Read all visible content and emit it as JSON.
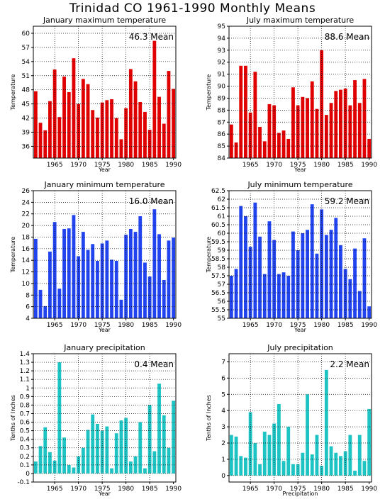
{
  "page_title": "Trinidad CO  1961-1990 Monthly Means",
  "chart_data": [
    {
      "type": "bar",
      "title": "January maximum temperature",
      "xlabel": "Year",
      "ylabel": "Temperature",
      "mean_label": "46.3 Mean",
      "color": "#e00000",
      "ylim": [
        33.5,
        61.5
      ],
      "yticks": [
        36,
        39,
        42,
        45,
        48,
        51,
        54,
        57,
        60
      ],
      "xticks": [
        1965,
        1970,
        1975,
        1980,
        1985,
        1990
      ],
      "x": [
        1961,
        1962,
        1963,
        1964,
        1965,
        1966,
        1967,
        1968,
        1969,
        1970,
        1971,
        1972,
        1973,
        1974,
        1975,
        1976,
        1977,
        1978,
        1979,
        1980,
        1981,
        1982,
        1983,
        1984,
        1985,
        1986,
        1987,
        1988,
        1989,
        1990
      ],
      "values": [
        47.7,
        41.0,
        39.4,
        45.6,
        52.3,
        42.2,
        50.8,
        47.5,
        54.7,
        45.0,
        50.3,
        49.2,
        43.7,
        42.1,
        45.3,
        45.8,
        46.0,
        42.0,
        37.5,
        44.1,
        52.4,
        49.8,
        45.4,
        43.3,
        39.5,
        58.4,
        46.5,
        40.8,
        52.0,
        48.2
      ],
      "grid": true
    },
    {
      "type": "bar",
      "title": "July maximum temperature",
      "xlabel": "Year",
      "ylabel": "Temperature",
      "mean_label": "88.6 Mean",
      "color": "#e00000",
      "ylim": [
        84,
        95
      ],
      "yticks": [
        84,
        85,
        86,
        87,
        88,
        89,
        90,
        91,
        92,
        93,
        94,
        95
      ],
      "xticks": [
        1965,
        1970,
        1975,
        1980,
        1985,
        1990
      ],
      "x": [
        1961,
        1962,
        1963,
        1964,
        1965,
        1966,
        1967,
        1968,
        1969,
        1970,
        1971,
        1972,
        1973,
        1974,
        1975,
        1976,
        1977,
        1978,
        1979,
        1980,
        1981,
        1982,
        1983,
        1984,
        1985,
        1986,
        1987,
        1988,
        1989,
        1990
      ],
      "values": [
        86.8,
        85.3,
        91.7,
        91.7,
        87.8,
        91.2,
        86.6,
        85.4,
        88.5,
        88.4,
        86.1,
        86.3,
        85.6,
        89.9,
        88.4,
        89.1,
        89.0,
        90.4,
        88.1,
        93.0,
        87.6,
        88.6,
        89.6,
        89.7,
        89.8,
        88.4,
        90.5,
        88.6,
        90.6,
        85.6
      ],
      "grid": true
    },
    {
      "type": "bar",
      "title": "January minimum temperature",
      "xlabel": "Year",
      "ylabel": "Temperature",
      "mean_label": "16.0 Mean",
      "color": "#2244ee",
      "ylim": [
        4,
        26
      ],
      "yticks": [
        4,
        6,
        8,
        10,
        12,
        14,
        16,
        18,
        20,
        22,
        24,
        26
      ],
      "xticks": [
        1965,
        1970,
        1975,
        1980,
        1985,
        1990
      ],
      "x": [
        1961,
        1962,
        1963,
        1964,
        1965,
        1966,
        1967,
        1968,
        1969,
        1970,
        1971,
        1972,
        1973,
        1974,
        1975,
        1976,
        1977,
        1978,
        1979,
        1980,
        1981,
        1982,
        1983,
        1984,
        1985,
        1986,
        1987,
        1988,
        1989,
        1990
      ],
      "values": [
        17.7,
        8.9,
        6.1,
        15.5,
        20.6,
        9.1,
        19.4,
        19.5,
        21.8,
        14.7,
        18.9,
        15.8,
        16.8,
        13.9,
        16.9,
        17.4,
        14.1,
        13.9,
        7.2,
        18.4,
        19.4,
        18.9,
        21.6,
        13.6,
        11.2,
        22.8,
        18.5,
        10.6,
        17.4,
        17.9
      ],
      "grid": true
    },
    {
      "type": "bar",
      "title": "July minimum temperature",
      "xlabel": "Year",
      "ylabel": "Temperature",
      "mean_label": "59.2 Mean",
      "color": "#2244ee",
      "ylim": [
        55,
        62.5
      ],
      "yticks": [
        55,
        55.5,
        56,
        56.5,
        57,
        57.5,
        58,
        58.5,
        59,
        59.5,
        60,
        60.5,
        61,
        61.5,
        62,
        62.5
      ],
      "xticks": [
        1965,
        1970,
        1975,
        1980,
        1985,
        1990
      ],
      "x": [
        1961,
        1962,
        1963,
        1964,
        1965,
        1966,
        1967,
        1968,
        1969,
        1970,
        1971,
        1972,
        1973,
        1974,
        1975,
        1976,
        1977,
        1978,
        1979,
        1980,
        1981,
        1982,
        1983,
        1984,
        1985,
        1986,
        1987,
        1988,
        1989,
        1990
      ],
      "values": [
        57.5,
        57.9,
        61.6,
        61.0,
        59.2,
        61.8,
        59.8,
        57.6,
        60.7,
        59.6,
        57.6,
        57.7,
        57.5,
        60.1,
        59.0,
        60.0,
        60.2,
        61.7,
        58.8,
        61.4,
        59.9,
        60.2,
        60.9,
        59.3,
        57.9,
        57.3,
        59.1,
        56.6,
        59.7,
        55.7
      ],
      "grid": true
    },
    {
      "type": "bar",
      "title": "January precipitation",
      "xlabel": "Year",
      "ylabel": "Tenths of Inches",
      "mean_label": "0.4 Mean",
      "color": "#1ec4c4",
      "ylim": [
        -0.1,
        1.4
      ],
      "yticks": [
        -0.1,
        0,
        0.1,
        0.2,
        0.3,
        0.4,
        0.5,
        0.6,
        0.7,
        0.8,
        0.9,
        1,
        1.1,
        1.2,
        1.3,
        1.4
      ],
      "xticks": [
        1965,
        1970,
        1975,
        1980,
        1985,
        1990
      ],
      "x": [
        1961,
        1962,
        1963,
        1964,
        1965,
        1966,
        1967,
        1968,
        1969,
        1970,
        1971,
        1972,
        1973,
        1974,
        1975,
        1976,
        1977,
        1978,
        1979,
        1980,
        1981,
        1982,
        1983,
        1984,
        1985,
        1986,
        1987,
        1988,
        1989,
        1990
      ],
      "values": [
        0.14,
        0.32,
        0.54,
        0.25,
        0.15,
        1.3,
        0.42,
        0.1,
        0.07,
        0.2,
        0.3,
        0.51,
        0.69,
        0.58,
        0.5,
        0.55,
        0.06,
        0.47,
        0.62,
        0.65,
        0.14,
        0.2,
        0.6,
        0.06,
        0.8,
        0.26,
        1.05,
        0.68,
        0.3,
        0.85
      ],
      "grid": true
    },
    {
      "type": "bar",
      "title": "July precipitation",
      "xlabel": "Precipitation",
      "ylabel": "Tenths of Inches",
      "mean_label": "2.2 Mean",
      "color": "#1ec4c4",
      "ylim": [
        -0.4,
        7.5
      ],
      "yticks": [
        0,
        1,
        2,
        3,
        4,
        5,
        6,
        7
      ],
      "xticks": [
        1965,
        1970,
        1975,
        1980,
        1985,
        1990
      ],
      "x": [
        1961,
        1962,
        1963,
        1964,
        1965,
        1966,
        1967,
        1968,
        1969,
        1970,
        1971,
        1972,
        1973,
        1974,
        1975,
        1976,
        1977,
        1978,
        1979,
        1980,
        1981,
        1982,
        1983,
        1984,
        1985,
        1986,
        1987,
        1988,
        1989,
        1990
      ],
      "values": [
        2.5,
        2.4,
        1.2,
        1.1,
        3.9,
        2.0,
        0.7,
        2.7,
        2.5,
        3.2,
        4.4,
        0.9,
        3.0,
        0.7,
        0.7,
        1.4,
        5.0,
        1.3,
        2.5,
        0.6,
        6.5,
        1.8,
        1.4,
        1.2,
        1.5,
        2.5,
        0.3,
        2.5,
        0.9,
        4.1
      ],
      "grid": true
    }
  ]
}
